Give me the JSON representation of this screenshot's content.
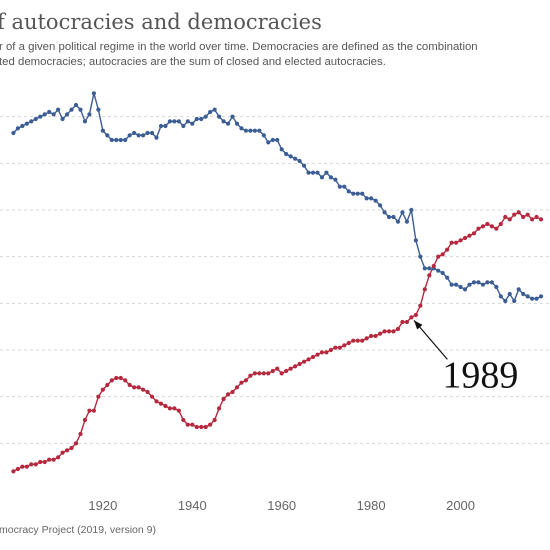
{
  "header": {
    "title": "f autocracies and democracies",
    "subtitle_line1": "r of a given political regime in the world over time. Democracies are defined as the combination",
    "subtitle_line2": "ted democracies; autocracies are the sum of closed and elected autocracies."
  },
  "footer": {
    "source": "mocracy Project (2019, version 9)"
  },
  "chart_data": {
    "type": "line",
    "x": [
      1900,
      1901,
      1902,
      1903,
      1904,
      1905,
      1906,
      1907,
      1908,
      1909,
      1910,
      1911,
      1912,
      1913,
      1914,
      1915,
      1916,
      1917,
      1918,
      1919,
      1920,
      1921,
      1922,
      1923,
      1924,
      1925,
      1926,
      1927,
      1928,
      1929,
      1930,
      1931,
      1932,
      1933,
      1934,
      1935,
      1936,
      1937,
      1938,
      1939,
      1940,
      1941,
      1942,
      1943,
      1944,
      1945,
      1946,
      1947,
      1948,
      1949,
      1950,
      1951,
      1952,
      1953,
      1954,
      1955,
      1956,
      1957,
      1958,
      1959,
      1960,
      1961,
      1962,
      1963,
      1964,
      1965,
      1966,
      1967,
      1968,
      1969,
      1970,
      1971,
      1972,
      1973,
      1974,
      1975,
      1976,
      1977,
      1978,
      1979,
      1980,
      1981,
      1982,
      1983,
      1984,
      1985,
      1986,
      1987,
      1988,
      1989,
      1990,
      1991,
      1992,
      1993,
      1994,
      1995,
      1996,
      1997,
      1998,
      1999,
      2000,
      2001,
      2002,
      2003,
      2004,
      2005,
      2006,
      2007,
      2008,
      2009,
      2010,
      2011,
      2012,
      2013,
      2014,
      2015,
      2016,
      2017,
      2018
    ],
    "series": [
      {
        "color": "#3b5d94",
        "values": [
          153,
          155,
          156,
          157,
          158,
          159,
          160,
          161,
          162,
          161,
          163,
          159,
          161,
          163,
          165,
          163,
          158,
          161,
          170,
          163,
          154,
          152,
          150,
          150,
          150,
          150,
          152,
          153,
          152,
          152,
          153,
          153,
          151,
          156,
          156,
          158,
          158,
          158,
          156,
          158,
          157,
          159,
          159,
          160,
          162,
          163,
          160,
          158,
          157,
          160,
          157,
          155,
          154,
          154,
          154,
          154,
          152,
          149,
          150,
          150,
          146,
          144,
          143,
          142,
          141,
          139,
          136,
          136,
          136,
          134,
          136,
          134,
          133,
          130,
          130,
          128,
          127,
          127,
          127,
          125,
          125,
          124,
          122,
          119,
          117,
          117,
          115,
          119,
          115,
          120,
          107,
          100,
          95,
          95,
          95,
          94,
          93,
          91,
          88,
          88,
          87,
          86,
          88,
          89,
          89,
          88,
          89,
          89,
          87,
          83,
          81,
          84,
          81,
          86,
          84,
          83,
          82,
          82,
          83
        ]
      },
      {
        "color": "#b5283e",
        "values": [
          8,
          9,
          10,
          10,
          11,
          11,
          12,
          12,
          13,
          13,
          14,
          16,
          17,
          18,
          20,
          24,
          30,
          34,
          34,
          40,
          43,
          45,
          47,
          48,
          48,
          47,
          45,
          44,
          44,
          43,
          42,
          40,
          38,
          37,
          36,
          35,
          35,
          34,
          30,
          28,
          28,
          27,
          27,
          27,
          28,
          30,
          35,
          39,
          41,
          42,
          44,
          46,
          47,
          49,
          50,
          50,
          50,
          50,
          51,
          52,
          50,
          51,
          52,
          53,
          54,
          55,
          56,
          57,
          58,
          59,
          59,
          60,
          61,
          61,
          62,
          63,
          64,
          64,
          64,
          65,
          66,
          66,
          67,
          68,
          68,
          68,
          69,
          72,
          72,
          74,
          75,
          79,
          86,
          92,
          96,
          100,
          101,
          103,
          106,
          106,
          107,
          108,
          109,
          110,
          112,
          113,
          114,
          113,
          112,
          114,
          117,
          116,
          118,
          119,
          117,
          118,
          116,
          117,
          116
        ]
      }
    ],
    "xlim": [
      1897,
      2020
    ],
    "ylim": [
      0,
      180
    ],
    "xticks": [
      1920,
      1940,
      1960,
      1980,
      2000
    ],
    "yticks": [
      0,
      20,
      40,
      60,
      80,
      100,
      120,
      140,
      160
    ],
    "annotation": {
      "label": "1989",
      "x": 1989,
      "y": 74
    },
    "grid": "horizontal dashed"
  }
}
